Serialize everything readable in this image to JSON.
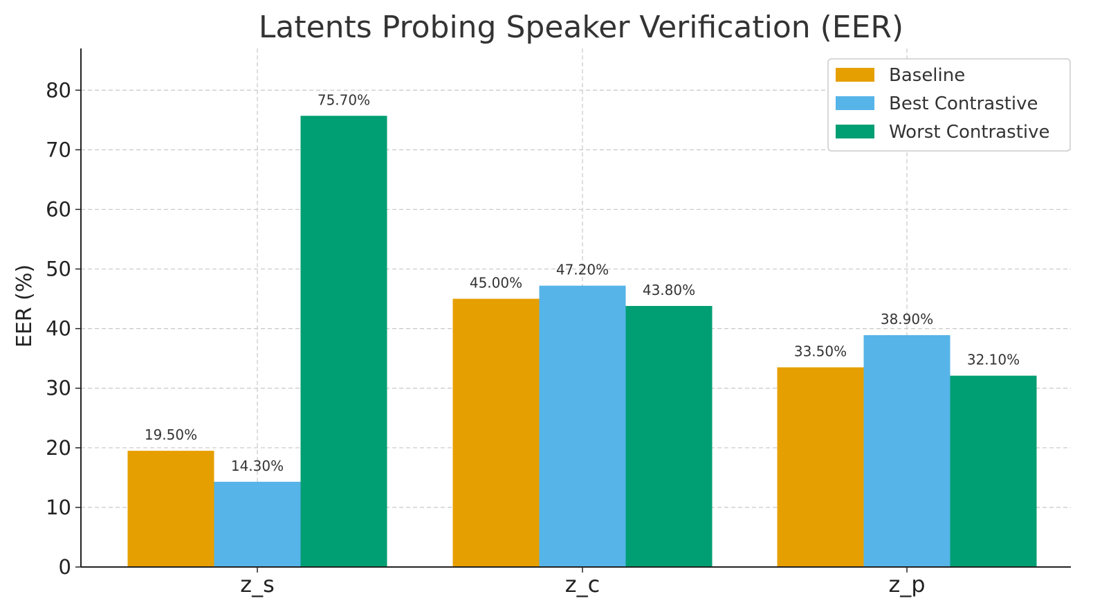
{
  "chart_data": {
    "type": "bar",
    "title": "Latents Probing Speaker Verification (EER)",
    "xlabel": "",
    "ylabel": "EER (%)",
    "categories": [
      "z_s",
      "z_c",
      "z_p"
    ],
    "ylim": [
      0,
      87
    ],
    "yticks": [
      0,
      10,
      20,
      30,
      40,
      50,
      60,
      70,
      80
    ],
    "grid": true,
    "legend_position": "top-right",
    "series": [
      {
        "name": "Baseline",
        "color": "#E69F00",
        "values": [
          19.5,
          45.0,
          33.5
        ],
        "labels": [
          "19.50%",
          "45.00%",
          "33.50%"
        ]
      },
      {
        "name": "Best Contrastive",
        "color": "#56B4E9",
        "values": [
          14.3,
          47.2,
          38.9
        ],
        "labels": [
          "14.30%",
          "47.20%",
          "38.90%"
        ]
      },
      {
        "name": "Worst Contrastive",
        "color": "#009E73",
        "values": [
          75.7,
          43.8,
          32.1
        ],
        "labels": [
          "75.70%",
          "43.80%",
          "32.10%"
        ]
      }
    ]
  }
}
